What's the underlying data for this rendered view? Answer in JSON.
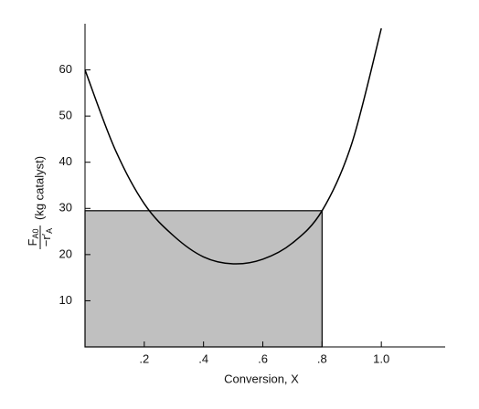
{
  "chart_data": {
    "type": "line",
    "x": [
      0,
      0.1,
      0.2,
      0.3,
      0.4,
      0.5,
      0.6,
      0.7,
      0.8,
      0.9,
      1.0
    ],
    "values": [
      60,
      43,
      31,
      24,
      19.5,
      18,
      19,
      22.5,
      29.5,
      44,
      69
    ],
    "color": "#000000",
    "rectangle": {
      "x": [
        0,
        0.8
      ],
      "height": 29.5,
      "color": "#c0c0c0"
    },
    "xlabel": "Conversion, X",
    "ylabel": {
      "numerator": "F",
      "numerator_sub": "A0",
      "denominator": "−r′",
      "denominator_sub": "A",
      "unit": "(kg catalyst)"
    },
    "xlim": [
      0,
      1.2
    ],
    "ylim": [
      0,
      70
    ],
    "xticks": [
      {
        "value": 0.2,
        "label": ".2"
      },
      {
        "value": 0.4,
        "label": ".4"
      },
      {
        "value": 0.6,
        "label": ".6"
      },
      {
        "value": 0.8,
        "label": ".8"
      },
      {
        "value": 1.0,
        "label": "1.0"
      }
    ],
    "yticks": [
      10,
      20,
      30,
      40,
      50,
      60
    ],
    "grid": false
  }
}
